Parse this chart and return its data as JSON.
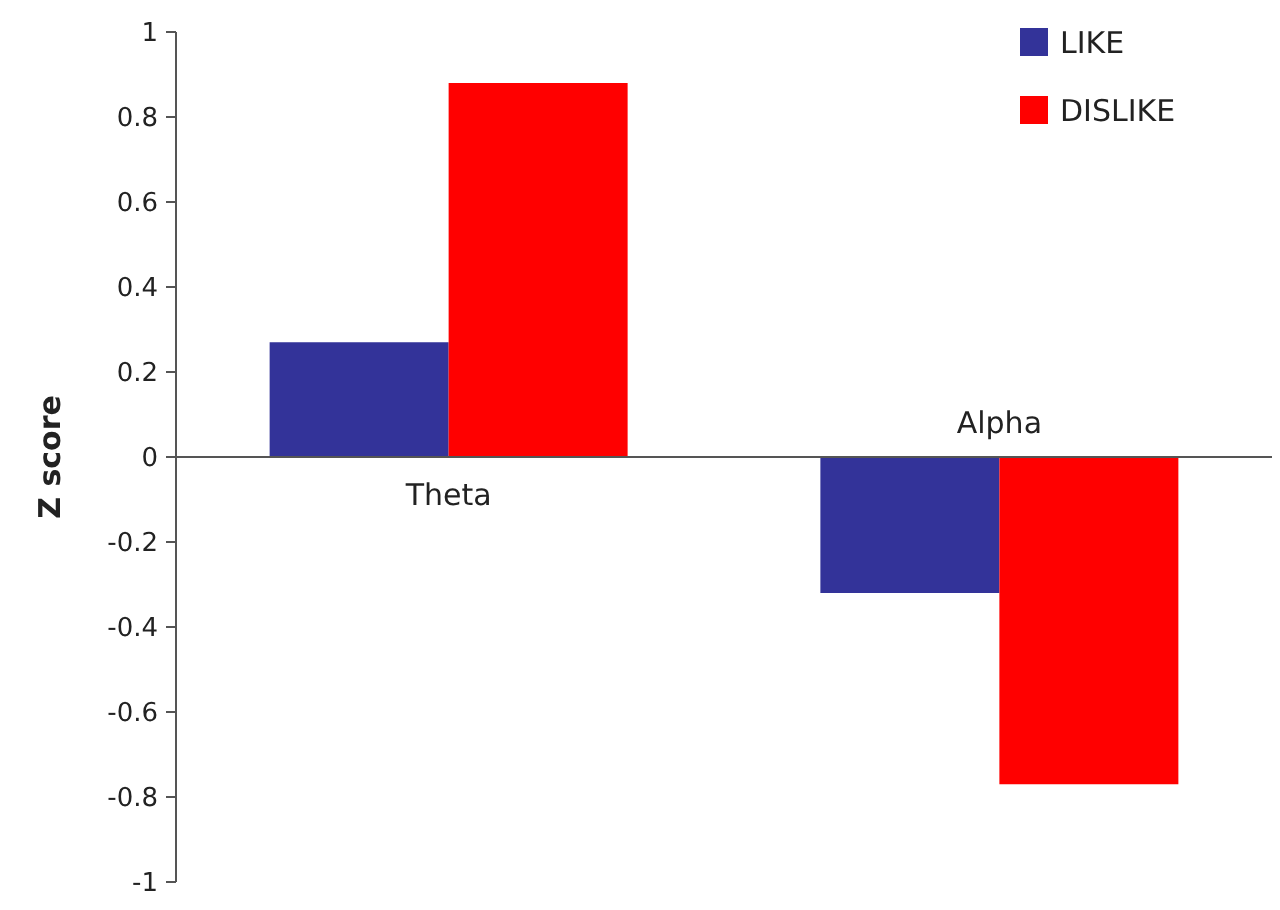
{
  "chart_data": {
    "type": "bar",
    "ylabel": "Z score",
    "categories": [
      "Theta",
      "Alpha"
    ],
    "series": [
      {
        "name": "LIKE",
        "color": "#333399",
        "values": [
          0.27,
          -0.32
        ]
      },
      {
        "name": "DISLIKE",
        "color": "#ff0000",
        "values": [
          0.88,
          -0.77
        ]
      }
    ],
    "ylim": [
      -1,
      1
    ],
    "yticks": [
      1,
      0.8,
      0.6,
      0.4,
      0.2,
      0,
      -0.2,
      -0.4,
      -0.6,
      -0.8,
      -1
    ],
    "legend": "top right"
  }
}
